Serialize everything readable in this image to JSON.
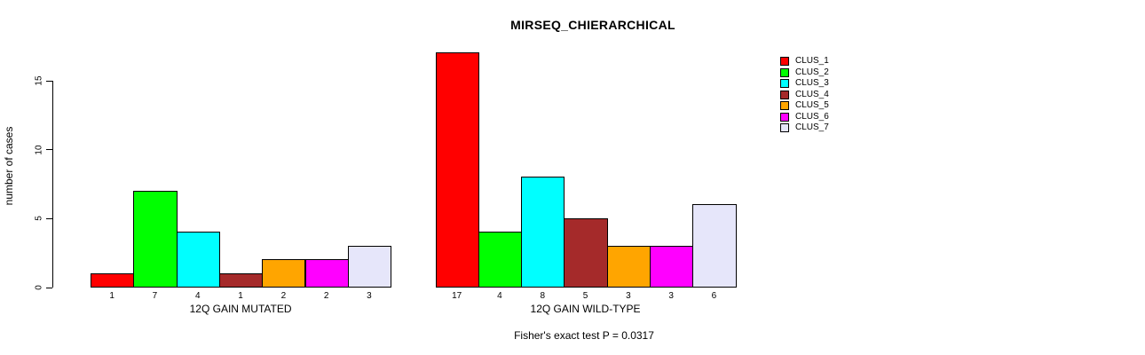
{
  "title": "MIRSEQ_CHIERARCHICAL",
  "chart_data": {
    "type": "bar",
    "title": "MIRSEQ_CHIERARCHICAL",
    "ylabel": "number of cases",
    "yticks": [
      0,
      5,
      10,
      15
    ],
    "ylim": [
      0,
      17
    ],
    "grid": false,
    "legend_position": "right",
    "series_names": [
      "CLUS_1",
      "CLUS_2",
      "CLUS_3",
      "CLUS_4",
      "CLUS_5",
      "CLUS_6",
      "CLUS_7"
    ],
    "colors": [
      "#ff0000",
      "#00ff00",
      "#00ffff",
      "#a52a2a",
      "#ffa500",
      "#ff00ff",
      "#e6e6fa"
    ],
    "groups": [
      {
        "label": "12Q GAIN MUTATED",
        "values": [
          1,
          7,
          4,
          1,
          2,
          2,
          3
        ]
      },
      {
        "label": "12Q GAIN WILD-TYPE",
        "values": [
          17,
          4,
          8,
          5,
          3,
          3,
          6
        ]
      }
    ],
    "footnote": "Fisher's exact test P = 0.0317"
  }
}
